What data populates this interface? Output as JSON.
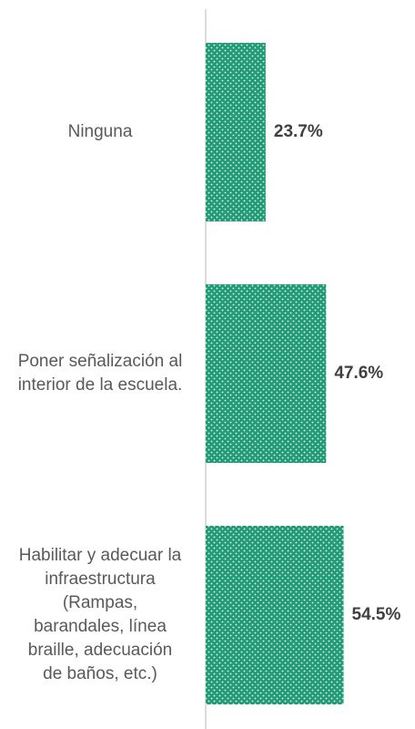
{
  "chart_data": {
    "type": "bar",
    "orientation": "horizontal",
    "categories": [
      "Ninguna",
      "Poner señalización al interior de la escuela.",
      "Habilitar y adecuar la infraestructura (Rampas, barandales, línea braille, adecuación de baños, etc.)"
    ],
    "values": [
      23.7,
      47.6,
      54.5
    ],
    "value_labels": [
      "23.7%",
      "47.6%",
      "54.5%"
    ],
    "color": "#1f9c74"
  }
}
